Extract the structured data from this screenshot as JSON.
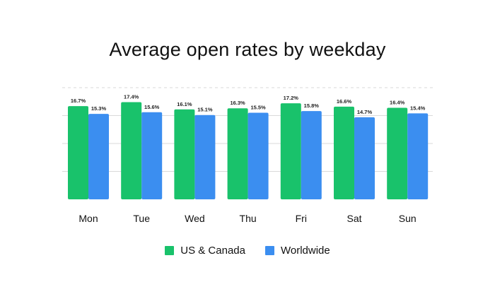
{
  "chart_data": {
    "type": "bar",
    "title": "Average open rates by weekday",
    "categories": [
      "Mon",
      "Tue",
      "Wed",
      "Thu",
      "Fri",
      "Sat",
      "Sun"
    ],
    "series": [
      {
        "name": "US & Canada",
        "color": "#19c26b",
        "values": [
          16.7,
          17.4,
          16.1,
          16.3,
          17.2,
          16.6,
          16.4
        ],
        "labels": [
          "16.7%",
          "17.4%",
          "16.1%",
          "16.3%",
          "17.2%",
          "16.6%",
          "16.4%"
        ]
      },
      {
        "name": "Worldwide",
        "color": "#3b8ef0",
        "values": [
          15.3,
          15.6,
          15.1,
          15.5,
          15.8,
          14.7,
          15.4
        ],
        "labels": [
          "15.3%",
          "15.6%",
          "15.1%",
          "15.5%",
          "15.8%",
          "14.7%",
          "15.4%"
        ]
      }
    ],
    "ylim": [
      0,
      20
    ],
    "grid": true,
    "legend_position": "bottom"
  }
}
